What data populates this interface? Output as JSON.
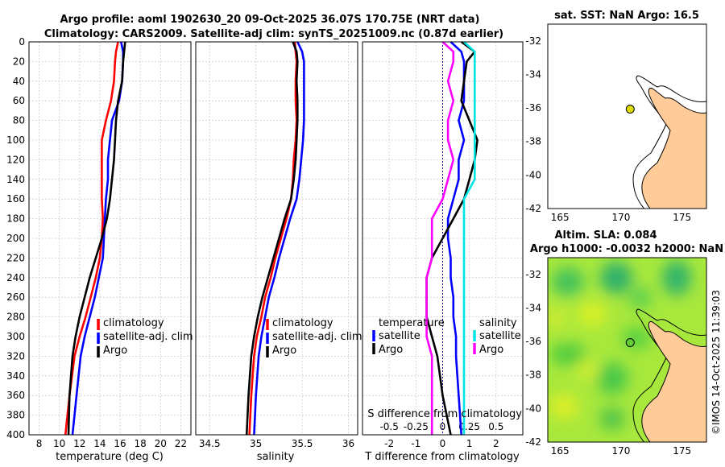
{
  "header": {
    "title_line1": "Argo profile: aoml 1902630_20 09-Oct-2025 36.07S 170.75E (NRT data)",
    "title_line2": "Climatology: CARS2009. Satellite-adj clim: synTS_20251009.nc (0.87d earlier)"
  },
  "colors": {
    "climatology": "#ff0000",
    "satellite": "#0000ff",
    "argo": "#000000",
    "sal_satellite": "#00e5e5",
    "sal_argo": "#ff00ff",
    "land": "#ffcc99"
  },
  "chart_data": [
    {
      "type": "line",
      "id": "temperature",
      "xlabel": "temperature (deg C)",
      "ylabel": "",
      "xlim": [
        7,
        23
      ],
      "ylim": [
        400,
        0
      ],
      "grid": true,
      "xticks": [
        "8",
        "10",
        "12",
        "14",
        "16",
        "18",
        "20",
        "22"
      ],
      "yticks": [
        "0",
        "20",
        "40",
        "60",
        "80",
        "100",
        "120",
        "140",
        "160",
        "180",
        "200",
        "220",
        "240",
        "260",
        "280",
        "300",
        "320",
        "340",
        "360",
        "380",
        "400"
      ],
      "legend": [
        "climatology",
        "satellite-adj. clim",
        "Argo"
      ],
      "series": [
        {
          "name": "climatology",
          "x": [
            15.8,
            15.6,
            15.5,
            15.4,
            15.1,
            14.6,
            14.2,
            14.2,
            14.2,
            14.2,
            14.3,
            14.2,
            14.0,
            13.6,
            13.1,
            12.6,
            12.0,
            11.5,
            11.0,
            10.6
          ],
          "y": [
            0,
            10,
            20,
            40,
            60,
            80,
            100,
            120,
            140,
            160,
            180,
            200,
            220,
            240,
            260,
            280,
            300,
            320,
            360,
            400
          ]
        },
        {
          "name": "satellite-adj. clim",
          "x": [
            16.1,
            16.3,
            16.3,
            16.2,
            15.9,
            15.2,
            15.0,
            14.8,
            14.8,
            14.6,
            14.5,
            14.4,
            14.3,
            13.9,
            13.5,
            13.0,
            12.5,
            12.1,
            11.7,
            11.3
          ],
          "y": [
            0,
            10,
            20,
            40,
            60,
            80,
            100,
            120,
            140,
            160,
            180,
            200,
            220,
            240,
            260,
            280,
            300,
            320,
            360,
            400
          ]
        },
        {
          "name": "Argo",
          "x": [
            16.5,
            16.4,
            16.3,
            16.2,
            15.8,
            15.6,
            15.5,
            15.4,
            15.2,
            15.0,
            14.7,
            14.2,
            13.6,
            13.0,
            12.5,
            12.0,
            11.6,
            11.3,
            11.0,
            10.9
          ],
          "y": [
            0,
            10,
            20,
            40,
            60,
            80,
            100,
            120,
            140,
            160,
            180,
            200,
            220,
            240,
            260,
            280,
            300,
            320,
            360,
            400
          ]
        }
      ]
    },
    {
      "type": "line",
      "id": "salinity",
      "xlabel": "salinity",
      "ylabel": "",
      "xlim": [
        34.35,
        36.1
      ],
      "ylim": [
        400,
        0
      ],
      "grid": true,
      "xticks": [
        "34.5",
        "35",
        "35.5",
        "36"
      ],
      "legend": [
        "climatology",
        "satellite-adj. clim",
        "Argo"
      ],
      "series": [
        {
          "name": "climatology",
          "x": [
            35.42,
            35.43,
            35.44,
            35.43,
            35.43,
            35.44,
            35.43,
            35.41,
            35.4,
            35.38,
            35.33,
            35.27,
            35.21,
            35.16,
            35.1,
            35.06,
            35.01,
            34.98,
            34.95,
            34.93
          ],
          "y": [
            0,
            10,
            20,
            40,
            60,
            80,
            100,
            120,
            140,
            160,
            180,
            200,
            220,
            240,
            260,
            280,
            300,
            320,
            360,
            400
          ]
        },
        {
          "name": "satellite-adj. clim",
          "x": [
            35.45,
            35.5,
            35.52,
            35.52,
            35.52,
            35.52,
            35.51,
            35.49,
            35.47,
            35.44,
            35.37,
            35.31,
            35.25,
            35.2,
            35.14,
            35.1,
            35.06,
            35.03,
            35.0,
            34.98
          ],
          "y": [
            0,
            10,
            20,
            40,
            60,
            80,
            100,
            120,
            140,
            160,
            180,
            200,
            220,
            240,
            260,
            280,
            300,
            320,
            360,
            400
          ]
        },
        {
          "name": "Argo",
          "x": [
            35.4,
            35.44,
            35.45,
            35.44,
            35.45,
            35.45,
            35.44,
            35.43,
            35.41,
            35.38,
            35.31,
            35.25,
            35.19,
            35.13,
            35.07,
            35.02,
            34.98,
            34.95,
            34.92,
            34.9
          ],
          "y": [
            0,
            10,
            20,
            40,
            60,
            80,
            100,
            120,
            140,
            160,
            180,
            200,
            220,
            240,
            260,
            280,
            300,
            320,
            360,
            400
          ]
        }
      ]
    },
    {
      "type": "line",
      "id": "differences",
      "xlabel": "T difference from climatology",
      "top_axis_label": "S difference from climatology",
      "xlim": [
        -3,
        3
      ],
      "ylim": [
        400,
        0
      ],
      "grid": true,
      "xticks": [
        "-2",
        "-1",
        "0",
        "1",
        "2"
      ],
      "top_xticks": [
        "-0.5",
        "-0.25",
        "0",
        "0.25",
        "0.5"
      ],
      "legend_left_title": "temperature",
      "legend_left": [
        "satellite",
        "Argo"
      ],
      "legend_right_title": "salinity",
      "legend_right": [
        "satellite",
        "Argo"
      ],
      "series": [
        {
          "name": "temperature satellite",
          "x": [
            0.3,
            0.7,
            0.8,
            0.8,
            0.8,
            0.6,
            0.8,
            0.6,
            0.6,
            0.4,
            0.2,
            0.2,
            0.3,
            0.3,
            0.4,
            0.4,
            0.5,
            0.5,
            0.6,
            0.7
          ],
          "y": [
            0,
            10,
            20,
            40,
            60,
            80,
            100,
            120,
            140,
            160,
            180,
            200,
            220,
            240,
            260,
            280,
            300,
            320,
            360,
            400
          ]
        },
        {
          "name": "temperature Argo",
          "x": [
            0.7,
            1.2,
            0.9,
            0.8,
            0.7,
            1.0,
            1.3,
            1.2,
            1.0,
            0.8,
            0.4,
            0.0,
            -0.4,
            -0.6,
            -0.6,
            -0.6,
            -0.4,
            -0.2,
            0.0,
            0.3
          ],
          "y": [
            0,
            10,
            20,
            40,
            60,
            80,
            100,
            120,
            140,
            160,
            180,
            200,
            220,
            240,
            260,
            280,
            300,
            320,
            360,
            400
          ]
        },
        {
          "name": "salinity satellite",
          "x": [
            0.2,
            0.3,
            0.3,
            0.3,
            0.3,
            0.3,
            0.3,
            0.3,
            0.3,
            0.2,
            0.2,
            0.2,
            0.2,
            0.2,
            0.2,
            0.2,
            0.2,
            0.2,
            0.2,
            0.2
          ],
          "y": [
            0,
            10,
            20,
            40,
            60,
            80,
            100,
            120,
            140,
            160,
            180,
            200,
            220,
            240,
            260,
            280,
            300,
            320,
            360,
            400
          ]
        },
        {
          "name": "salinity Argo",
          "x": [
            0.0,
            0.1,
            0.1,
            0.05,
            0.1,
            0.05,
            0.05,
            0.1,
            0.05,
            0.0,
            -0.1,
            -0.1,
            -0.1,
            -0.15,
            -0.15,
            -0.15,
            -0.15,
            -0.1,
            -0.1,
            -0.1
          ],
          "y": [
            0,
            10,
            20,
            40,
            60,
            80,
            100,
            120,
            140,
            160,
            180,
            200,
            220,
            240,
            260,
            280,
            300,
            320,
            360,
            400
          ]
        }
      ]
    },
    {
      "type": "map",
      "id": "sst_map",
      "title": "sat. SST: NaN Argo: 16.5",
      "xlim": [
        164,
        177
      ],
      "ylim": [
        -42,
        -31
      ],
      "xticks": [
        "165",
        "170",
        "175"
      ],
      "yticks": [
        "-32",
        "-34",
        "-36",
        "-38",
        "-40",
        "-42"
      ],
      "float_position": {
        "lon": 170.75,
        "lat": -36.07
      }
    },
    {
      "type": "map",
      "id": "sla_map",
      "title_line1": "Altim. SLA: 0.084",
      "title_line2": "Argo h1000: -0.0032 h2000: NaN",
      "xlim": [
        164,
        177
      ],
      "ylim": [
        -42,
        -31
      ],
      "xticks": [
        "165",
        "170",
        "175"
      ],
      "yticks": [
        "-32",
        "-34",
        "-36",
        "-38",
        "-40",
        "-42"
      ],
      "float_position": {
        "lon": 170.75,
        "lat": -36.07
      }
    }
  ],
  "footer": {
    "stamp": "©IMOS 14-Oct-2025 11:39:03"
  }
}
